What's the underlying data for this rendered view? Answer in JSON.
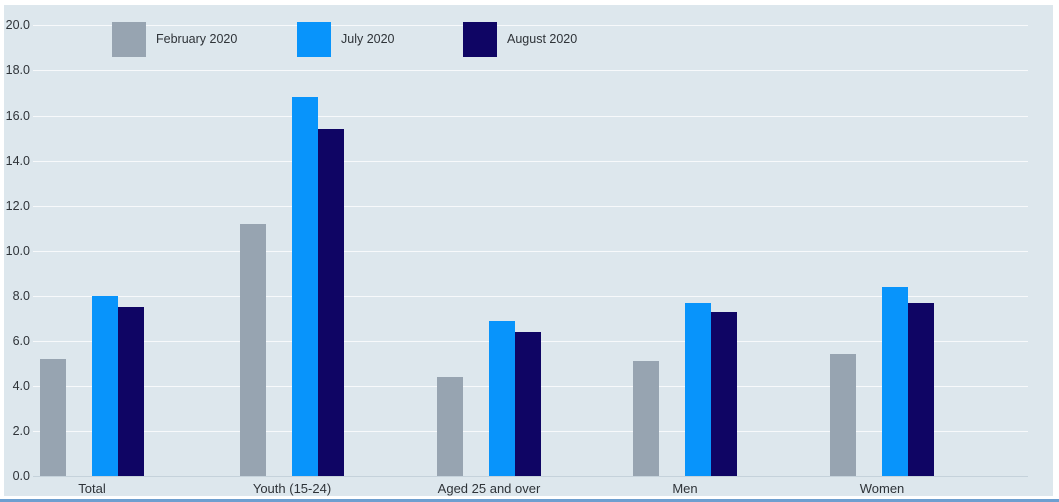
{
  "page": {
    "panel_bg": "#dde7ed",
    "gridline_color": "rgba(255,255,255,0.75)",
    "axis_line_color": "#c5d2db",
    "text_color": "#2e3338",
    "bottom_divider_color": "#6d9fd0"
  },
  "chart_data": {
    "type": "bar",
    "title": "",
    "xlabel": "",
    "ylabel": "",
    "categories": [
      "Total",
      "Youth (15-24)",
      "Aged 25 and over",
      "Men",
      "Women"
    ],
    "series": [
      {
        "name": "February 2020",
        "color": "#97a4b1",
        "values": [
          5.2,
          11.2,
          4.4,
          5.1,
          5.4
        ]
      },
      {
        "name": "July 2020",
        "color": "#0894fb",
        "values": [
          8.0,
          16.8,
          6.9,
          7.7,
          8.4
        ]
      },
      {
        "name": "August 2020",
        "color": "#0f0564",
        "values": [
          7.5,
          15.4,
          6.4,
          7.3,
          7.7
        ]
      }
    ],
    "y_axis": {
      "min": 0,
      "max": 20,
      "step": 2,
      "tick_format_decimals": 1,
      "tick_labels": [
        "0.0",
        "2.0",
        "4.0",
        "6.0",
        "8.0",
        "10.0",
        "12.0",
        "14.0",
        "16.0",
        "18.0",
        "20.0"
      ]
    },
    "grid": "horizontal",
    "legend_position": "top"
  }
}
